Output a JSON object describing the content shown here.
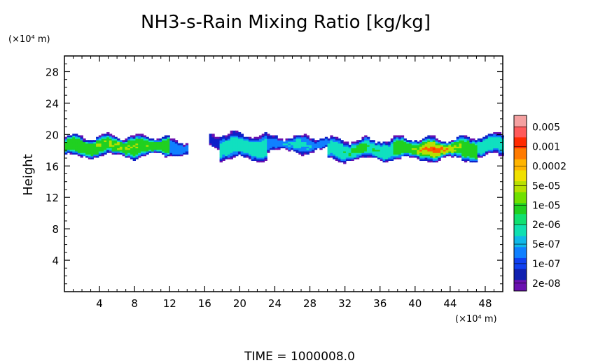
{
  "chart_data": {
    "type": "heatmap",
    "title": "NH3-s-Rain Mixing Ratio [kg/kg]",
    "ylabel": "Height",
    "y_unit_label": "(×10⁴ m)",
    "x_unit_label": "(×10⁴ m)",
    "footer": "TIME  =  1000008.0",
    "xlim": [
      0,
      50
    ],
    "ylim": [
      0,
      30
    ],
    "x_ticks": [
      4,
      8,
      12,
      16,
      20,
      24,
      28,
      32,
      36,
      40,
      44,
      48
    ],
    "y_ticks": [
      4,
      8,
      12,
      16,
      20,
      24,
      28
    ],
    "x_tick_labels": [
      "4",
      "8",
      "12",
      "16",
      "20",
      "24",
      "28",
      "32",
      "36",
      "40",
      "44",
      "48"
    ],
    "y_tick_labels": [
      "4",
      "8",
      "12",
      "16",
      "20",
      "24",
      "28"
    ],
    "colorbar": {
      "labels": [
        "0.005",
        "0.001",
        "0.0002",
        "5e-05",
        "1e-05",
        "2e-06",
        "5e-07",
        "1e-07",
        "2e-08"
      ],
      "colors": [
        "#f4a0a0",
        "#ff5a5a",
        "#ff2a00",
        "#ff7a00",
        "#ffb400",
        "#f0e000",
        "#b8e000",
        "#70e000",
        "#20d020",
        "#10e070",
        "#10e0b0",
        "#10b8e8",
        "#1080ff",
        "#1040f0",
        "#1020b0",
        "#6a10b0"
      ]
    },
    "field": {
      "description_levels": "0=none, 1=2e-08..1e-07, 2=1e-07..5e-07, 3=5e-07..2e-06, 4=2e-06..1e-05, 5=1e-05..5e-05, 6=5e-05..2e-04, 7=2e-04..1e-03",
      "segments": [
        {
          "x0": 0.0,
          "x1": 12.0,
          "top": 19.6,
          "bottom": 17.2,
          "core": 5,
          "peak": 5.5
        },
        {
          "x0": 12.0,
          "x1": 14.0,
          "top": 19.0,
          "bottom": 17.4,
          "core": 3,
          "peak": 3
        },
        {
          "x0": 16.5,
          "x1": 20.0,
          "top": 20.0,
          "bottom": 18.6,
          "core": 2,
          "peak": 2
        },
        {
          "x0": 17.5,
          "x1": 23.0,
          "top": 19.8,
          "bottom": 16.8,
          "core": 4,
          "peak": 4
        },
        {
          "x0": 23.0,
          "x1": 30.0,
          "top": 19.6,
          "bottom": 17.8,
          "core": 3,
          "peak": 4
        },
        {
          "x0": 30.0,
          "x1": 37.5,
          "top": 19.2,
          "bottom": 16.8,
          "core": 4,
          "peak": 5
        },
        {
          "x0": 37.5,
          "x1": 47.0,
          "top": 19.4,
          "bottom": 16.8,
          "core": 5,
          "peak": 7
        },
        {
          "x0": 47.0,
          "x1": 50.0,
          "top": 19.8,
          "bottom": 17.2,
          "core": 4,
          "peak": 4
        }
      ]
    }
  }
}
